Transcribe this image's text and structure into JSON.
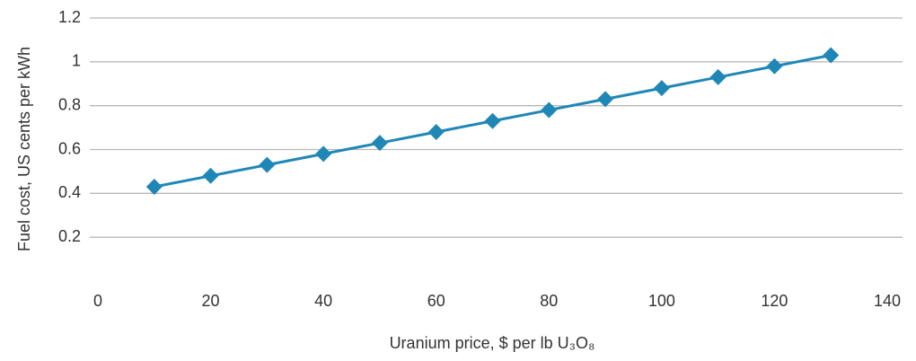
{
  "chart_data": {
    "type": "line",
    "x_label": "Uranium price, $ per lb U₃O₈",
    "y_label": "Fuel cost, US cents per kWh",
    "x": [
      10,
      20,
      30,
      40,
      50,
      60,
      70,
      80,
      90,
      100,
      110,
      120,
      130
    ],
    "series": [
      {
        "name": null,
        "color": "#1f87b6",
        "values": [
          0.43,
          0.48,
          0.53,
          0.58,
          0.63,
          0.68,
          0.73,
          0.78,
          0.83,
          0.88,
          0.93,
          0.98,
          1.03
        ]
      }
    ],
    "xlim": [
      0,
      140
    ],
    "xticks": [
      0,
      20,
      40,
      60,
      80,
      100,
      120,
      140
    ],
    "ylim": [
      0,
      1.2
    ],
    "yticks": [
      0.2,
      0.4,
      0.6,
      0.8,
      1,
      1.2
    ],
    "grid": true
  }
}
